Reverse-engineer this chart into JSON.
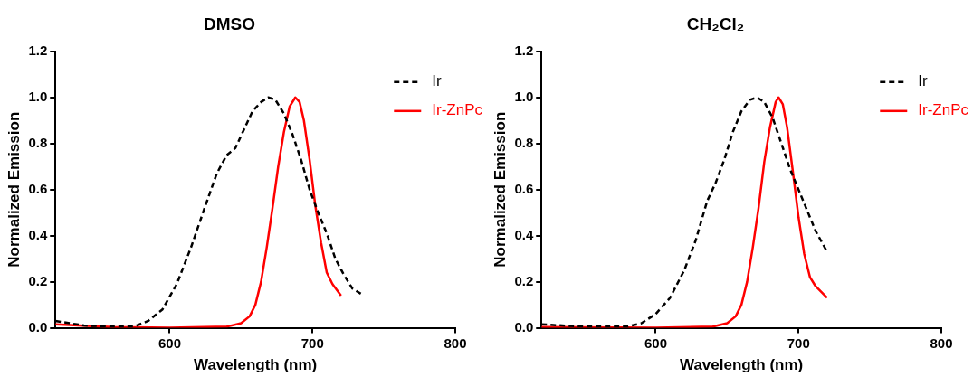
{
  "chart_data": [
    {
      "type": "line",
      "title": "DMSO",
      "xlabel": "Wavelength (nm)",
      "ylabel": "Normalized Emission",
      "xlim": [
        520,
        800
      ],
      "xticks": [
        600,
        700,
        800
      ],
      "ylim": [
        0,
        1.2
      ],
      "yticks": [
        {
          "value": 0,
          "label": "0.0"
        },
        {
          "value": 0.2,
          "label": "0.2"
        },
        {
          "value": 0.4,
          "label": "0.4"
        },
        {
          "value": 0.6,
          "label": "0.6"
        },
        {
          "value": 0.8,
          "label": "0.8"
        },
        {
          "value": 1,
          "label": "1.0"
        },
        {
          "value": 1.2,
          "label": "1.2"
        }
      ],
      "legend": "top right",
      "marker": "none",
      "series": [
        {
          "name": "Ir",
          "color": "#000000",
          "line_style": "dashed",
          "x": [
            520,
            540,
            560,
            575,
            585,
            595,
            605,
            615,
            625,
            633,
            640,
            646,
            652,
            658,
            664,
            669,
            674,
            680,
            686,
            692,
            698,
            704,
            710,
            716,
            722,
            728,
            736
          ],
          "values": [
            0.03,
            0.01,
            0.005,
            0.005,
            0.03,
            0.08,
            0.19,
            0.35,
            0.53,
            0.67,
            0.75,
            0.78,
            0.86,
            0.94,
            0.98,
            1.0,
            0.99,
            0.93,
            0.84,
            0.73,
            0.6,
            0.5,
            0.41,
            0.3,
            0.23,
            0.17,
            0.14
          ]
        },
        {
          "name": "Ir-ZnPc",
          "color": "#ff0000",
          "line_style": "solid",
          "x": [
            520,
            560,
            600,
            640,
            650,
            656,
            660,
            664,
            668,
            672,
            676,
            680,
            684,
            688,
            691,
            694,
            698,
            702,
            706,
            710,
            714,
            720
          ],
          "values": [
            0.015,
            0.003,
            0,
            0.005,
            0.02,
            0.05,
            0.1,
            0.2,
            0.35,
            0.52,
            0.7,
            0.85,
            0.96,
            1.0,
            0.98,
            0.9,
            0.73,
            0.53,
            0.37,
            0.24,
            0.19,
            0.14
          ]
        }
      ]
    },
    {
      "type": "line",
      "title": "CH₂Cl₂",
      "xlabel": "Wavelength (nm)",
      "ylabel": "Normalized Emission",
      "xlim": [
        520,
        800
      ],
      "xticks": [
        600,
        700,
        800
      ],
      "ylim": [
        0,
        1.2
      ],
      "yticks": [
        {
          "value": 0,
          "label": "0.0"
        },
        {
          "value": 0.2,
          "label": "0.2"
        },
        {
          "value": 0.4,
          "label": "0.4"
        },
        {
          "value": 0.6,
          "label": "0.6"
        },
        {
          "value": 0.8,
          "label": "0.8"
        },
        {
          "value": 1,
          "label": "1.0"
        },
        {
          "value": 1.2,
          "label": "1.2"
        }
      ],
      "legend": "top right",
      "marker": "none",
      "series": [
        {
          "name": "Ir",
          "color": "#000000",
          "line_style": "dashed",
          "x": [
            520,
            550,
            580,
            590,
            600,
            610,
            620,
            628,
            636,
            642,
            648,
            654,
            660,
            666,
            671,
            676,
            682,
            688,
            694,
            700,
            706,
            712,
            720
          ],
          "values": [
            0.015,
            0.005,
            0.005,
            0.02,
            0.06,
            0.13,
            0.25,
            0.38,
            0.55,
            0.63,
            0.73,
            0.85,
            0.94,
            0.99,
            1.0,
            0.98,
            0.91,
            0.8,
            0.69,
            0.6,
            0.51,
            0.42,
            0.33
          ]
        },
        {
          "name": "Ir-ZnPc",
          "color": "#ff0000",
          "line_style": "solid",
          "x": [
            520,
            600,
            640,
            650,
            656,
            660,
            664,
            668,
            672,
            676,
            680,
            684,
            686,
            689,
            692,
            696,
            700,
            704,
            708,
            712,
            720
          ],
          "values": [
            0.003,
            0,
            0.005,
            0.02,
            0.05,
            0.1,
            0.2,
            0.35,
            0.52,
            0.72,
            0.87,
            0.98,
            1.0,
            0.97,
            0.87,
            0.68,
            0.48,
            0.32,
            0.22,
            0.18,
            0.13
          ]
        }
      ]
    }
  ]
}
